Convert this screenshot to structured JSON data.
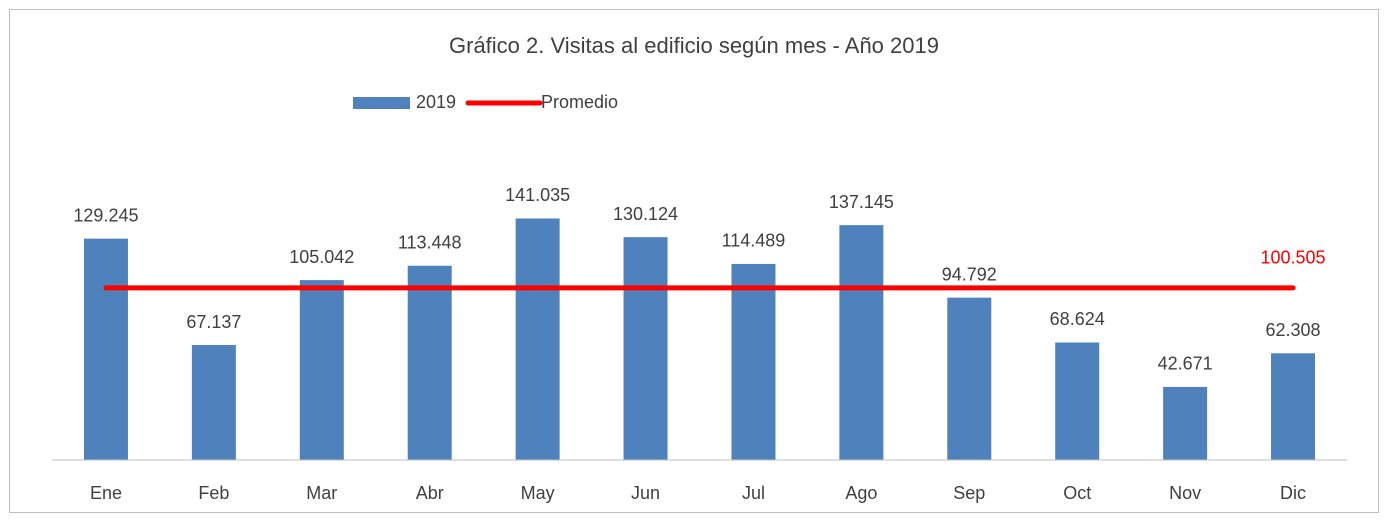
{
  "chart_data": {
    "type": "bar",
    "title": "Gráfico 2. Visitas al edificio según mes - Año 2019",
    "categories": [
      "Ene",
      "Feb",
      "Mar",
      "Abr",
      "May",
      "Jun",
      "Jul",
      "Ago",
      "Sep",
      "Oct",
      "Nov",
      "Dic"
    ],
    "series": [
      {
        "name": "2019",
        "type": "bar",
        "color": "#4f81bd",
        "values": [
          129245,
          67137,
          105042,
          113448,
          141035,
          130124,
          114489,
          137145,
          94792,
          68624,
          42671,
          62308
        ],
        "value_labels": [
          "129.245",
          "67.137",
          "105.042",
          "113.448",
          "141.035",
          "130.124",
          "114.489",
          "137.145",
          "94.792",
          "68.624",
          "42.671",
          "62.308"
        ]
      },
      {
        "name": "Promedio",
        "type": "line",
        "color": "#ff0000",
        "values": [
          100505,
          100505,
          100505,
          100505,
          100505,
          100505,
          100505,
          100505,
          100505,
          100505,
          100505,
          100505
        ],
        "value_labels": [
          null,
          null,
          null,
          null,
          null,
          null,
          null,
          null,
          null,
          null,
          null,
          "100.505"
        ]
      }
    ],
    "ylim": [
      0,
      160000
    ],
    "legend": "top"
  }
}
